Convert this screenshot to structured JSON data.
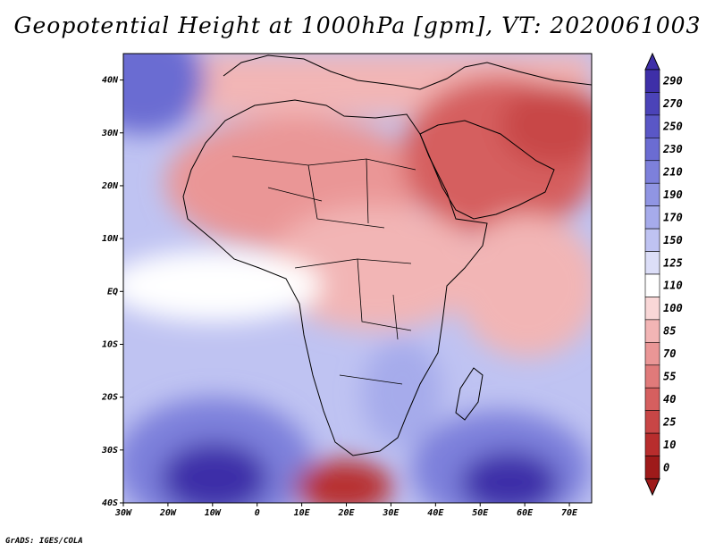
{
  "title": "Geopotential Height at 1000hPa [gpm], VT: 2020061003",
  "credit": "GrADS: IGES/COLA",
  "map": {
    "variable": "Geopotential Height",
    "level": "1000hPa",
    "units": "gpm",
    "valid_time": "2020061003",
    "lon_range": [
      -30,
      75
    ],
    "lat_range": [
      -40,
      45
    ],
    "lon_ticks": [
      "30W",
      "20W",
      "10W",
      "0",
      "10E",
      "20E",
      "30E",
      "40E",
      "50E",
      "60E",
      "70E"
    ],
    "lat_ticks": [
      "40N",
      "30N",
      "20N",
      "10N",
      "EQ",
      "10S",
      "20S",
      "30S",
      "40S"
    ]
  },
  "colorbar": {
    "levels": [
      "290",
      "270",
      "250",
      "230",
      "210",
      "190",
      "170",
      "150",
      "125",
      "110",
      "100",
      "85",
      "70",
      "55",
      "40",
      "25",
      "10",
      "0"
    ],
    "colors": [
      "#3e2fa8",
      "#4b43b8",
      "#5a57c6",
      "#6b6cd2",
      "#7d80db",
      "#9095e3",
      "#a6abeb",
      "#bfc3f2",
      "#dcdef8",
      "#ffffff",
      "#f9d7d7",
      "#f2b5b5",
      "#ea9696",
      "#e07a7a",
      "#d55f5f",
      "#c84646",
      "#b82d2d",
      "#9e1a1a"
    ]
  },
  "colors": {
    "background": "#ffffff",
    "coast": "#000000"
  }
}
